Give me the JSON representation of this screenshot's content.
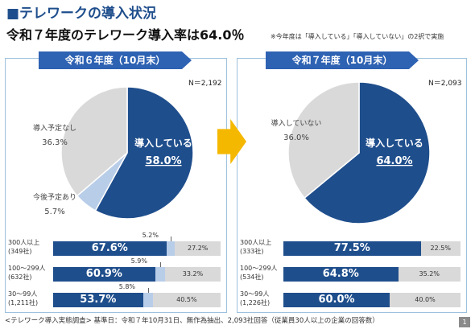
{
  "title": "■テレワークの導入状況",
  "headline": "令和７年度のテレワーク導入率は64.0％",
  "note": "※今年度は「導入している」「導入していない」の2択で実施",
  "footnote": "<テレワーク導入実態調査> 基準日：令和７年10月31日、無作為抽出、2,093社回答（従業員30人以上の企業の回答数）",
  "page_number": "1",
  "colors": {
    "navy": "#1f4e8c",
    "light_blue": "#b8cde8",
    "gray": "#d9d9d9",
    "banner": "#2e62b3",
    "arrow": "#f5b800"
  },
  "chart_data": [
    {
      "type": "pie",
      "title": "令和６年度（10月末）",
      "n_label": "N＝2,192",
      "slices": [
        {
          "label": "導入している",
          "value": 58.0,
          "value_text": "58.0%",
          "color": "#1f4e8c"
        },
        {
          "label": "今後予定あり",
          "value": 5.7,
          "value_text": "5.7%",
          "color": "#b8cde8"
        },
        {
          "label": "導入予定なし",
          "value": 36.3,
          "value_text": "36.3%",
          "color": "#d9d9d9"
        }
      ]
    },
    {
      "type": "bar",
      "stacked": true,
      "orientation": "horizontal",
      "categories": [
        [
          "300人以上",
          "(349社)"
        ],
        [
          "100～299人",
          "(632社)"
        ],
        [
          "30～99人",
          "(1,211社)"
        ]
      ],
      "series": [
        {
          "values": [
            67.6,
            60.9,
            53.7
          ],
          "labels": [
            "67.6%",
            "60.9%",
            "53.7%"
          ]
        },
        {
          "values": [
            5.2,
            5.9,
            5.8
          ],
          "labels": [
            "5.2%",
            "5.9%",
            "5.8%"
          ]
        },
        {
          "values": [
            27.2,
            33.2,
            40.5
          ],
          "labels": [
            "27.2%",
            "33.2%",
            "40.5%"
          ]
        }
      ]
    },
    {
      "type": "pie",
      "title": "令和７年度（10月末）",
      "n_label": "N＝2,093",
      "slices": [
        {
          "label": "導入している",
          "value": 64.0,
          "value_text": "64.0%",
          "color": "#1f4e8c"
        },
        {
          "label": "導入していない",
          "value": 36.0,
          "value_text": "36.0%",
          "color": "#d9d9d9"
        }
      ]
    },
    {
      "type": "bar",
      "stacked": true,
      "orientation": "horizontal",
      "categories": [
        [
          "300人以上",
          "(333社)"
        ],
        [
          "100～299人",
          "(534社)"
        ],
        [
          "30～99人",
          "(1,226社)"
        ]
      ],
      "series": [
        {
          "values": [
            77.5,
            64.8,
            60.0
          ],
          "labels": [
            "77.5%",
            "64.8%",
            "60.0%"
          ]
        },
        {
          "values": [
            22.5,
            35.2,
            40.0
          ],
          "labels": [
            "22.5%",
            "35.2%",
            "40.0%"
          ]
        }
      ]
    }
  ]
}
